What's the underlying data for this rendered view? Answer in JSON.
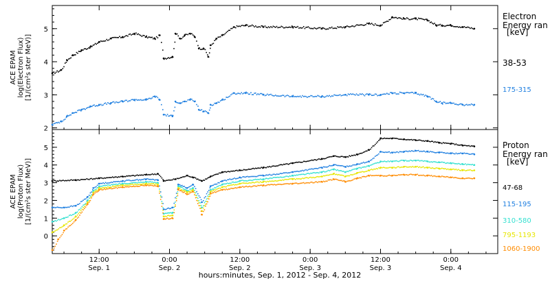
{
  "x_axis": {
    "title": "hours:minutes, Sep.  1, 2012 - Sep.  4, 2012",
    "ticks": [
      {
        "t": 12,
        "time": "12:00",
        "date": "Sep. 1"
      },
      {
        "t": 24,
        "time": "0:00",
        "date": "Sep. 2"
      },
      {
        "t": 36,
        "time": "12:00",
        "date": "Sep. 2"
      },
      {
        "t": 48,
        "time": "0:00",
        "date": "Sep. 3"
      },
      {
        "t": 60,
        "time": "12:00",
        "date": "Sep. 3"
      },
      {
        "t": 72,
        "time": "0:00",
        "date": "Sep. 4"
      }
    ]
  },
  "chart_data": [
    {
      "type": "scatter",
      "ylabel_lines": [
        "ACE EPAM",
        "log(Electron Flux)",
        "[1/(cm²s ster MeV)]"
      ],
      "legend_title_lines": [
        "Electron",
        "Energy ran"
      ],
      "legend_unit": "[keV]",
      "xlim": [
        4.0,
        80.0
      ],
      "ylim": [
        1.95,
        5.7
      ],
      "yticks": [
        2,
        3,
        4,
        5
      ],
      "series": [
        {
          "name": "38-53",
          "color": "#000000",
          "x": [
            4.0,
            5.5,
            6.5,
            7.5,
            9.0,
            10.5,
            12.0,
            14.0,
            16.0,
            18.0,
            20.0,
            21.5,
            22.3,
            23.0,
            24.5,
            25.0,
            25.8,
            26.6,
            27.5,
            28.3,
            29.0,
            29.8,
            30.6,
            31.0,
            32.0,
            33.0,
            35.0,
            37.0,
            40.0,
            45.0,
            50.0,
            54.0,
            58.0,
            60.0,
            62.0,
            64.0,
            66.0,
            68.0,
            69.5,
            70.5,
            72.0,
            74.0,
            76.0
          ],
          "y": [
            3.65,
            3.75,
            4.05,
            4.2,
            4.35,
            4.45,
            4.6,
            4.7,
            4.75,
            4.85,
            4.75,
            4.7,
            4.8,
            4.1,
            4.15,
            4.85,
            4.7,
            4.8,
            4.85,
            4.75,
            4.4,
            4.4,
            4.15,
            4.5,
            4.7,
            4.8,
            5.05,
            5.1,
            5.05,
            5.05,
            5.0,
            5.05,
            5.15,
            5.1,
            5.35,
            5.3,
            5.3,
            5.25,
            5.1,
            5.1,
            5.1,
            5.05,
            5.0
          ]
        },
        {
          "name": "175-315",
          "color": "#1f7fe0",
          "x": [
            4.0,
            5.5,
            6.5,
            7.5,
            9.0,
            10.5,
            12.0,
            14.0,
            16.0,
            18.0,
            20.0,
            21.5,
            22.3,
            23.0,
            24.5,
            25.0,
            25.8,
            26.6,
            27.5,
            28.3,
            29.0,
            29.8,
            30.6,
            31.0,
            32.0,
            33.0,
            35.0,
            37.0,
            40.0,
            45.0,
            50.0,
            54.0,
            58.0,
            60.0,
            62.0,
            64.0,
            66.0,
            68.0,
            69.5,
            70.5,
            72.0,
            74.0,
            76.0
          ],
          "y": [
            2.1,
            2.2,
            2.35,
            2.45,
            2.55,
            2.65,
            2.7,
            2.75,
            2.8,
            2.85,
            2.85,
            2.95,
            2.85,
            2.4,
            2.35,
            2.8,
            2.75,
            2.8,
            2.85,
            2.8,
            2.55,
            2.5,
            2.45,
            2.7,
            2.75,
            2.85,
            3.05,
            3.05,
            3.0,
            2.95,
            2.95,
            3.0,
            3.0,
            3.0,
            3.05,
            3.05,
            3.05,
            2.95,
            2.8,
            2.75,
            2.75,
            2.7,
            2.7
          ]
        }
      ]
    },
    {
      "type": "scatter",
      "ylabel_lines": [
        "ACE EPAM",
        "log(Proton Flux)",
        "[1/(cm²s ster MeV)]"
      ],
      "legend_title_lines": [
        "Proton",
        "Energy ran"
      ],
      "legend_unit": "[keV]",
      "xlim": [
        4.0,
        80.0
      ],
      "ylim": [
        -1.0,
        6.0
      ],
      "yticks": [
        0,
        1,
        2,
        3,
        4,
        5
      ],
      "series": [
        {
          "name": "47-68",
          "color": "#000000",
          "x": [
            4.0,
            8.0,
            12.0,
            16.0,
            20.0,
            22.0,
            23.0,
            25.0,
            27.0,
            28.0,
            29.5,
            31.0,
            33.0,
            36.0,
            40.0,
            45.0,
            50.0,
            52.0,
            54.0,
            56.0,
            58.0,
            60.0,
            62.0,
            64.0,
            66.0,
            68.0,
            70.0,
            72.0,
            74.0,
            76.0
          ],
          "y": [
            3.1,
            3.15,
            3.25,
            3.35,
            3.45,
            3.5,
            3.1,
            3.2,
            3.4,
            3.3,
            3.1,
            3.35,
            3.6,
            3.7,
            3.85,
            4.1,
            4.35,
            4.5,
            4.45,
            4.6,
            4.85,
            5.5,
            5.5,
            5.45,
            5.4,
            5.35,
            5.25,
            5.2,
            5.1,
            5.05
          ]
        },
        {
          "name": "115-195",
          "color": "#1f7fe0",
          "x": [
            4.0,
            6.0,
            8.0,
            10.0,
            11.0,
            12.0,
            16.0,
            20.0,
            22.0,
            23.0,
            24.5,
            25.5,
            27.0,
            28.0,
            29.5,
            31.0,
            33.0,
            36.0,
            40.0,
            45.0,
            50.0,
            52.0,
            54.0,
            56.0,
            58.0,
            60.0,
            62.0,
            64.0,
            66.0,
            68.0,
            70.0,
            72.0,
            74.0,
            76.0
          ],
          "y": [
            1.6,
            1.6,
            1.7,
            2.2,
            2.7,
            2.95,
            3.1,
            3.2,
            3.15,
            1.5,
            1.6,
            2.9,
            2.7,
            2.9,
            1.9,
            2.8,
            3.1,
            3.3,
            3.4,
            3.6,
            3.85,
            4.0,
            3.9,
            4.05,
            4.2,
            4.75,
            4.7,
            4.75,
            4.8,
            4.75,
            4.7,
            4.65,
            4.65,
            4.6
          ]
        },
        {
          "name": "310-580",
          "color": "#33e0d0",
          "x": [
            4.0,
            6.0,
            8.0,
            10.0,
            11.0,
            12.0,
            16.0,
            20.0,
            22.0,
            23.0,
            24.5,
            25.5,
            27.0,
            28.0,
            29.5,
            31.0,
            33.0,
            36.0,
            40.0,
            45.0,
            50.0,
            52.0,
            54.0,
            56.0,
            58.0,
            60.0,
            62.0,
            64.0,
            66.0,
            68.0,
            70.0,
            72.0,
            74.0,
            76.0
          ],
          "y": [
            0.8,
            1.0,
            1.3,
            2.0,
            2.55,
            2.8,
            2.95,
            3.05,
            3.0,
            1.25,
            1.3,
            2.8,
            2.55,
            2.7,
            1.6,
            2.6,
            2.9,
            3.1,
            3.2,
            3.4,
            3.6,
            3.75,
            3.6,
            3.8,
            3.95,
            4.2,
            4.2,
            4.25,
            4.25,
            4.2,
            4.15,
            4.1,
            4.05,
            4.0
          ]
        },
        {
          "name": "795-1193",
          "color": "#e6e600",
          "x": [
            4.0,
            6.0,
            8.0,
            10.0,
            11.0,
            12.0,
            16.0,
            20.0,
            22.0,
            23.0,
            24.5,
            25.5,
            27.0,
            28.0,
            29.5,
            31.0,
            33.0,
            36.0,
            40.0,
            45.0,
            50.0,
            52.0,
            54.0,
            56.0,
            58.0,
            60.0,
            62.0,
            64.0,
            66.0,
            68.0,
            70.0,
            72.0,
            74.0,
            76.0
          ],
          "y": [
            0.2,
            0.6,
            1.1,
            1.9,
            2.45,
            2.7,
            2.85,
            2.95,
            2.9,
            1.1,
            1.15,
            2.7,
            2.45,
            2.6,
            1.4,
            2.5,
            2.75,
            2.95,
            3.05,
            3.2,
            3.35,
            3.5,
            3.35,
            3.55,
            3.7,
            3.85,
            3.85,
            3.9,
            3.9,
            3.85,
            3.8,
            3.75,
            3.7,
            3.7
          ]
        },
        {
          "name": "1060-1900",
          "color": "#ff8c00",
          "x": [
            4.0,
            5.0,
            6.0,
            8.0,
            10.0,
            11.0,
            12.0,
            16.0,
            20.0,
            22.0,
            23.0,
            24.5,
            25.5,
            27.0,
            28.0,
            29.5,
            31.0,
            33.0,
            36.0,
            40.0,
            45.0,
            50.0,
            52.0,
            54.0,
            56.0,
            58.0,
            60.0,
            62.0,
            64.0,
            66.0,
            68.0,
            70.0,
            72.0,
            74.0,
            76.0
          ],
          "y": [
            -0.8,
            -0.2,
            0.3,
            0.9,
            1.8,
            2.35,
            2.6,
            2.75,
            2.85,
            2.8,
            0.95,
            1.0,
            2.6,
            2.35,
            2.5,
            1.2,
            2.4,
            2.6,
            2.75,
            2.85,
            2.95,
            3.05,
            3.2,
            3.05,
            3.25,
            3.4,
            3.4,
            3.4,
            3.45,
            3.45,
            3.4,
            3.35,
            3.3,
            3.25,
            3.25
          ]
        }
      ]
    }
  ]
}
